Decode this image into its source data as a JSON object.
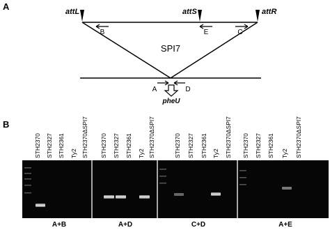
{
  "panel_a": {
    "label": "A",
    "sites": [
      "attL",
      "attS",
      "attR"
    ],
    "island": "SPI7",
    "primers_top": [
      "B",
      "E",
      "C"
    ],
    "primers_bottom": [
      "A",
      "D"
    ],
    "gene": "pheU"
  },
  "panel_b": {
    "label": "B",
    "gels": [
      {
        "lanes": [
          "STH2370",
          "STH2327",
          "STH2361",
          "Ty2",
          "STH2370ΔSPI7"
        ],
        "primers": "A+B"
      },
      {
        "lanes": [
          "STH2370",
          "STH2327",
          "STH2361",
          "Ty2",
          "STH2370ΔSPI7"
        ],
        "primers": "A+D"
      },
      {
        "lanes": [
          "STH2370",
          "STH2327",
          "STH2361",
          "Ty2",
          "STH2370ΔSPI7"
        ],
        "primers": "C+D"
      },
      {
        "lanes": [
          "STH2370",
          "STH2327",
          "STH2361",
          "Ty2",
          "STH2370ΔSPI7"
        ],
        "primers": "A+E"
      }
    ]
  }
}
